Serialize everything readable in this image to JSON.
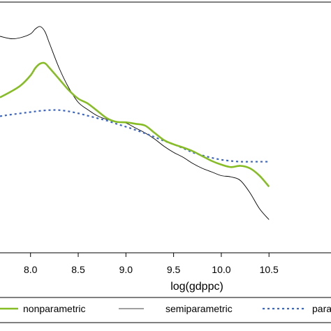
{
  "chart_data": {
    "type": "line",
    "title": "",
    "xlabel": "log(gdppc)",
    "ylabel": "",
    "xlim": [
      7.68,
      11.15
    ],
    "ylim": [
      0,
      1
    ],
    "x_ticks": [
      8.0,
      8.5,
      9.0,
      9.5,
      10.0,
      10.5
    ],
    "x_tick_labels": [
      "8.0",
      "8.5",
      "9.0",
      "9.5",
      "10.0",
      "10.5"
    ],
    "grid": false,
    "legend_position": "bottom",
    "series": [
      {
        "name": "nonparametric",
        "color": "#86bc24",
        "style": "solid",
        "x": [
          7.68,
          7.8,
          7.9,
          8.0,
          8.05,
          8.1,
          8.15,
          8.2,
          8.3,
          8.4,
          8.5,
          8.6,
          8.7,
          8.8,
          8.9,
          9.0,
          9.1,
          9.2,
          9.3,
          9.4,
          9.5,
          9.6,
          9.7,
          9.8,
          9.9,
          10.0,
          10.1,
          10.2,
          10.3,
          10.4,
          10.5
        ],
        "y": [
          0.63,
          0.655,
          0.68,
          0.72,
          0.75,
          0.768,
          0.77,
          0.75,
          0.705,
          0.66,
          0.625,
          0.605,
          0.575,
          0.545,
          0.53,
          0.528,
          0.522,
          0.515,
          0.485,
          0.455,
          0.438,
          0.425,
          0.41,
          0.39,
          0.37,
          0.355,
          0.345,
          0.35,
          0.34,
          0.31,
          0.265
        ]
      },
      {
        "name": "semiparametric",
        "color": "#000000",
        "style": "solid",
        "x": [
          7.68,
          7.8,
          7.9,
          8.0,
          8.05,
          8.1,
          8.15,
          8.2,
          8.3,
          8.4,
          8.5,
          8.6,
          8.7,
          8.8,
          8.9,
          9.0,
          9.1,
          9.2,
          9.3,
          9.4,
          9.5,
          9.6,
          9.7,
          9.8,
          9.9,
          10.0,
          10.1,
          10.2,
          10.3,
          10.4,
          10.5
        ],
        "y": [
          0.88,
          0.87,
          0.875,
          0.89,
          0.91,
          0.92,
          0.9,
          0.85,
          0.75,
          0.67,
          0.61,
          0.58,
          0.555,
          0.54,
          0.532,
          0.525,
          0.505,
          0.485,
          0.46,
          0.43,
          0.405,
          0.385,
          0.36,
          0.34,
          0.325,
          0.31,
          0.305,
          0.29,
          0.24,
          0.175,
          0.13
        ]
      },
      {
        "name": "parametric",
        "color": "#3a64c8",
        "style": "dotted",
        "x": [
          7.68,
          7.8,
          8.0,
          8.1,
          8.2,
          8.3,
          8.4,
          8.5,
          8.6,
          8.7,
          8.8,
          8.9,
          9.0,
          9.1,
          9.2,
          9.3,
          9.4,
          9.5,
          9.6,
          9.7,
          9.8,
          9.9,
          10.0,
          10.1,
          10.2,
          10.3,
          10.4,
          10.5
        ],
        "y": [
          0.553,
          0.56,
          0.57,
          0.575,
          0.578,
          0.578,
          0.573,
          0.565,
          0.555,
          0.545,
          0.535,
          0.522,
          0.51,
          0.497,
          0.483,
          0.468,
          0.452,
          0.438,
          0.422,
          0.405,
          0.393,
          0.383,
          0.375,
          0.37,
          0.367,
          0.367,
          0.367,
          0.367
        ]
      }
    ]
  }
}
